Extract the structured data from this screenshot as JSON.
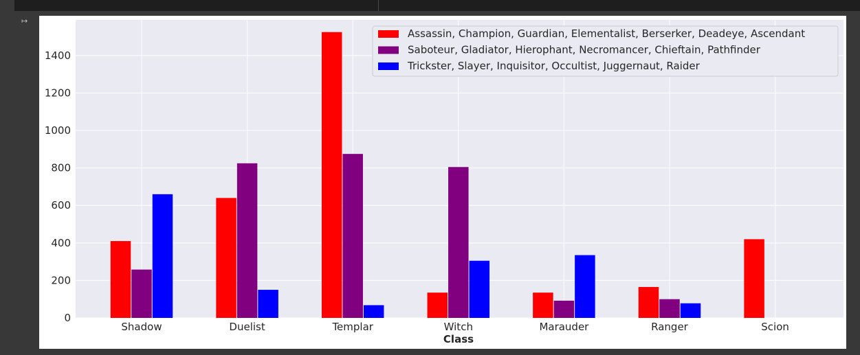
{
  "cell": {
    "output_icon": "output-icon"
  },
  "chart_data": {
    "type": "bar",
    "title": "",
    "xlabel": "Class",
    "ylabel": "",
    "categories": [
      "Shadow",
      "Duelist",
      "Templar",
      "Witch",
      "Marauder",
      "Ranger",
      "Scion"
    ],
    "series": [
      {
        "name": "Assassin, Champion, Guardian, Elementalist, Berserker, Deadeye, Ascendant",
        "color": "#ff0000",
        "values": [
          410,
          640,
          1525,
          135,
          135,
          165,
          420
        ]
      },
      {
        "name": "Saboteur, Gladiator, Hierophant, Necromancer, Chieftain, Pathfinder",
        "color": "#800080",
        "values": [
          258,
          825,
          875,
          805,
          92,
          100,
          0
        ]
      },
      {
        "name": "Trickster, Slayer, Inquisitor, Occultist, Juggernaut, Raider",
        "color": "#0000ff",
        "values": [
          660,
          150,
          68,
          305,
          335,
          78,
          0
        ]
      }
    ],
    "ylim": [
      0,
      1590
    ],
    "yticks": [
      0,
      200,
      400,
      600,
      800,
      1000,
      1200,
      1400
    ],
    "grid": true,
    "legend_position": "top-right",
    "plot_background": "#eaeaf2"
  }
}
